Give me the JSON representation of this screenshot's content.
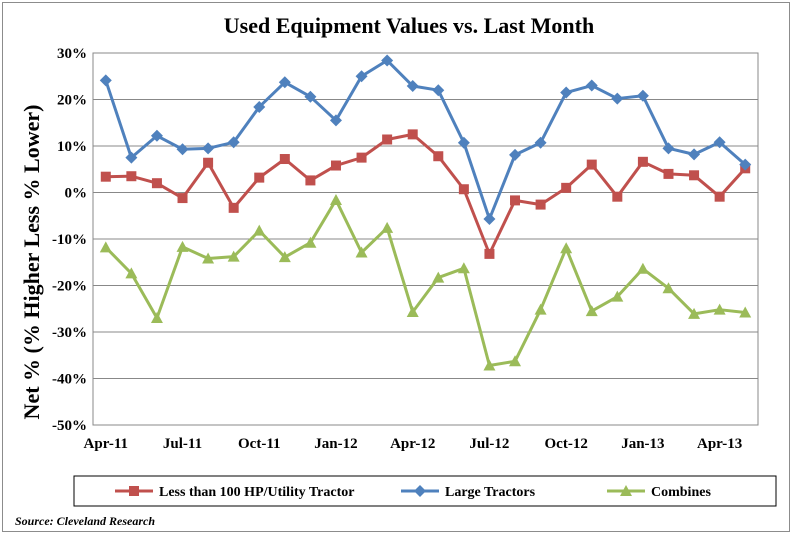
{
  "chart_data": {
    "type": "line",
    "title": "Used Equipment Values vs. Last Month",
    "ylabel": "Net % (% Higher Less % Lower)",
    "xlabel": "",
    "ylim": [
      -50,
      30
    ],
    "yticks": [
      30,
      20,
      10,
      0,
      -10,
      -20,
      -30,
      -40,
      -50
    ],
    "ytick_labels": [
      "30%",
      "20%",
      "10%",
      "0%",
      "-10%",
      "-20%",
      "-30%",
      "-40%",
      "-50%"
    ],
    "x": [
      "Apr-11",
      "May-11",
      "Jun-11",
      "Jul-11",
      "Aug-11",
      "Sep-11",
      "Oct-11",
      "Nov-11",
      "Dec-11",
      "Jan-12",
      "Feb-12",
      "Mar-12",
      "Apr-12",
      "May-12",
      "Jun-12",
      "Jul-12",
      "Aug-12",
      "Sep-12",
      "Oct-12",
      "Nov-12",
      "Dec-12",
      "Jan-13",
      "Feb-13",
      "Mar-13",
      "Apr-13",
      "May-13"
    ],
    "xtick_labels": [
      {
        "index": 0,
        "label": "Apr-11"
      },
      {
        "index": 3,
        "label": "Jul-11"
      },
      {
        "index": 6,
        "label": "Oct-11"
      },
      {
        "index": 9,
        "label": "Jan-12"
      },
      {
        "index": 12,
        "label": "Apr-12"
      },
      {
        "index": 15,
        "label": "Jul-12"
      },
      {
        "index": 18,
        "label": "Oct-12"
      },
      {
        "index": 21,
        "label": "Jan-13"
      },
      {
        "index": 24,
        "label": "Apr-13"
      }
    ],
    "grid": "horizontal",
    "legend_position": "bottom",
    "series": [
      {
        "name": "Less than 100 HP/Utility Tractor",
        "color": "#c0504d",
        "marker": "square",
        "values": [
          3.4,
          3.5,
          2,
          -1.2,
          6.4,
          -3.3,
          3.2,
          7.2,
          2.6,
          5.8,
          7.5,
          11.4,
          12.5,
          7.8,
          0.7,
          -13.2,
          -1.7,
          -2.6,
          1,
          6,
          -0.9,
          6.6,
          4,
          3.7,
          -0.9,
          5.2
        ]
      },
      {
        "name": "Large Tractors",
        "color": "#4f81bd",
        "marker": "diamond",
        "values": [
          24.1,
          7.5,
          12.2,
          9.3,
          9.5,
          10.8,
          18.4,
          23.7,
          20.6,
          15.5,
          25,
          28.4,
          22.9,
          22,
          10.7,
          -5.7,
          8.1,
          10.7,
          21.5,
          23,
          20.2,
          20.8,
          9.5,
          8.2,
          10.8,
          6
        ]
      },
      {
        "name": "Combines",
        "color": "#9bbb59",
        "marker": "triangle",
        "values": [
          -11.8,
          -17.4,
          -27,
          -11.7,
          -14.2,
          -13.8,
          -8.2,
          -13.9,
          -10.8,
          -1.6,
          -12.9,
          -7.6,
          -25.7,
          -18.3,
          -16.3,
          -37.2,
          -36.3,
          -25.2,
          -12,
          -25.5,
          -22.4,
          -16.4,
          -20.6,
          -26.1,
          -25.2,
          -25.8
        ]
      }
    ],
    "source": "Source: Cleveland Research"
  }
}
